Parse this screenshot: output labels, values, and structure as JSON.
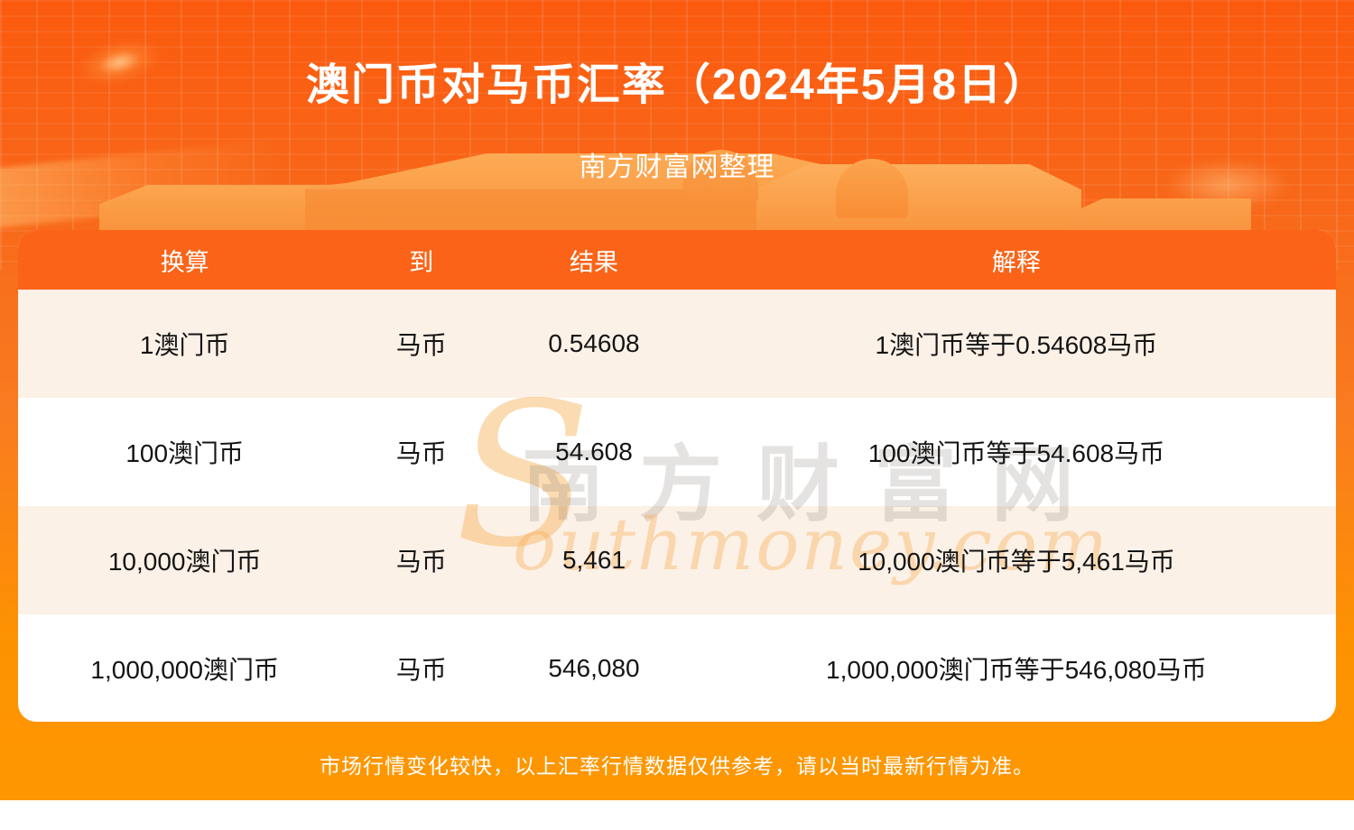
{
  "header": {
    "title": "澳门币对马币汇率（2024年5月8日）",
    "subtitle": "南方财富网整理"
  },
  "table": {
    "headers": [
      "换算",
      "到",
      "结果",
      "解释"
    ],
    "rows": [
      [
        "1澳门币",
        "马币",
        "0.54608",
        "1澳门币等于0.54608马币"
      ],
      [
        "100澳门币",
        "马币",
        "54.608",
        "100澳门币等于54.608马币"
      ],
      [
        "10,000澳门币",
        "马币",
        "5,461",
        "10,000澳门币等于5,461马币"
      ],
      [
        "1,000,000澳门币",
        "马币",
        "546,080",
        "1,000,000澳门币等于546,080马币"
      ]
    ]
  },
  "watermark": {
    "cn": "南方财富网",
    "en_initial": "S",
    "en_rest": "outhmoney.com"
  },
  "footer": {
    "note": "市场行情变化较快，以上汇率行情数据仅供参考，请以当时最新行情为准。"
  },
  "colors": {
    "banner_top": "#fb5a0e",
    "banner_bottom": "#fe9701",
    "table_header_bg": "#fb6418",
    "row_alt_bg": "#fcf1e7",
    "row_bg": "#ffffff",
    "footer_band": "#fe9701",
    "text_dark": "#141414",
    "text_light": "#ffffff"
  }
}
